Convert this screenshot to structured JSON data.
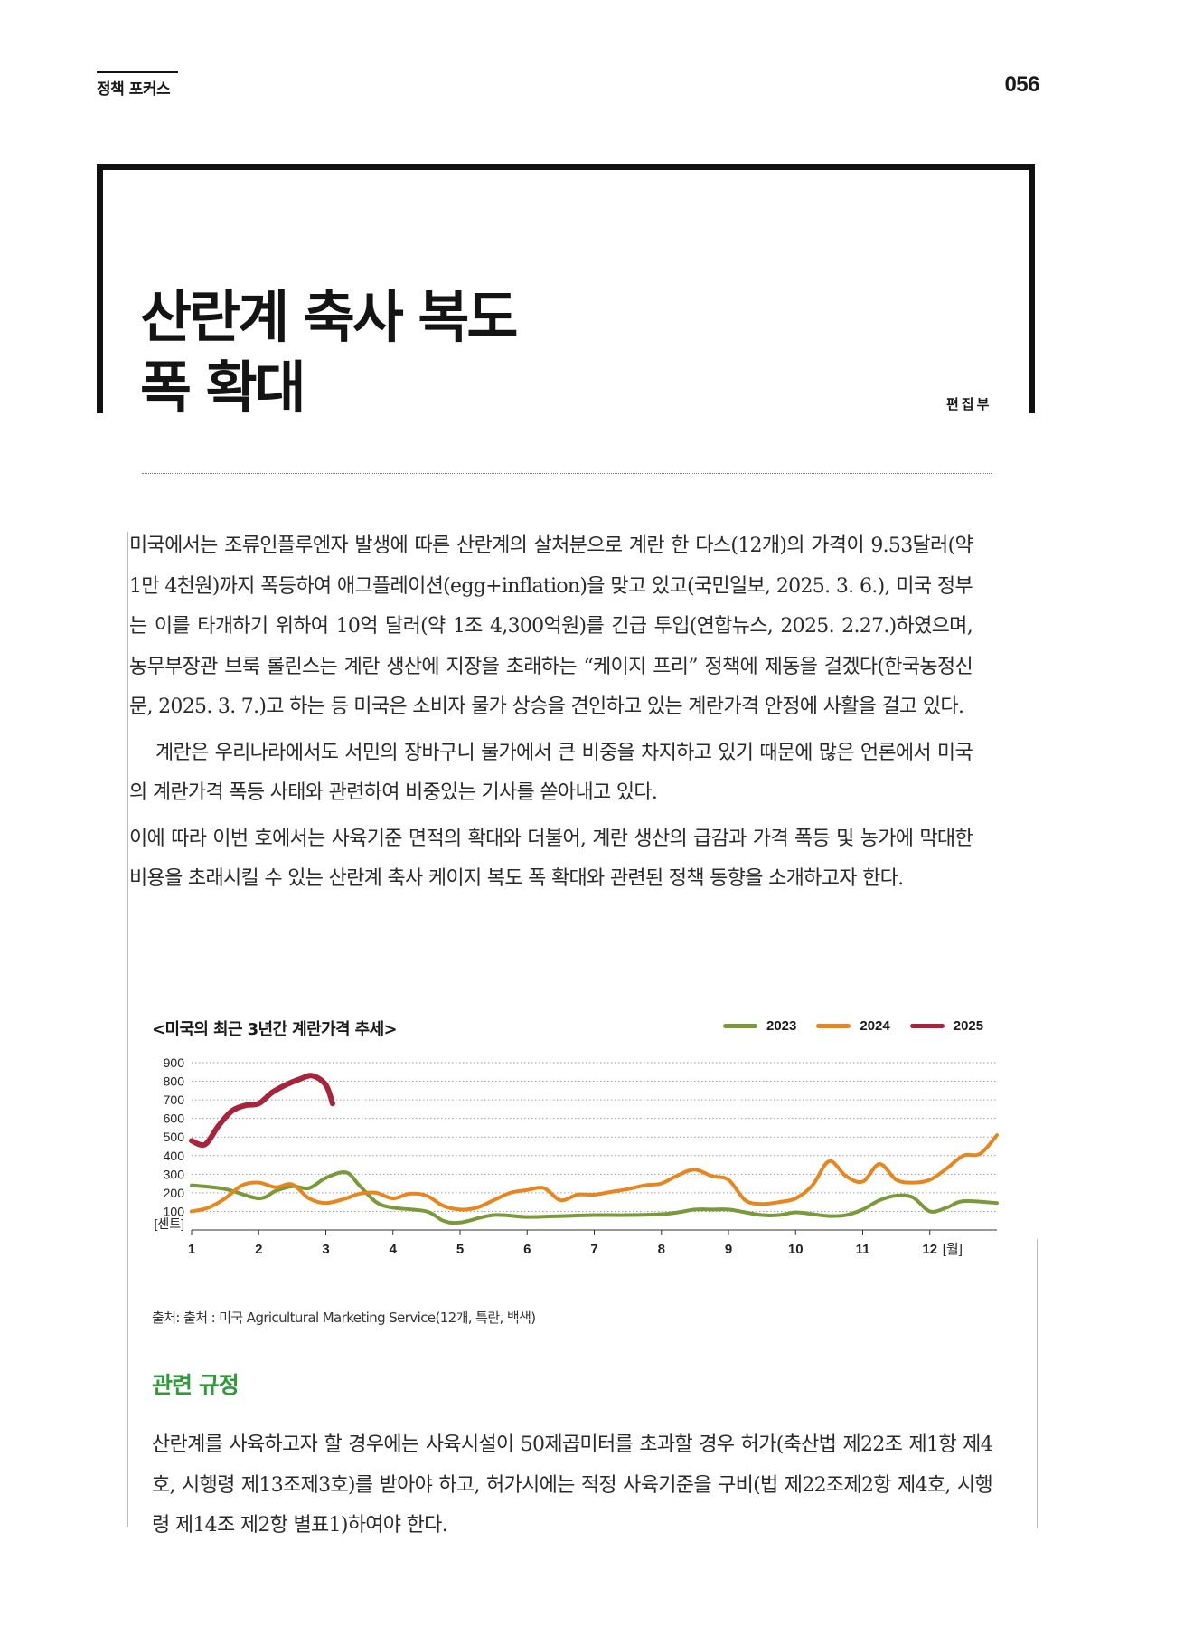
{
  "header": {
    "section": "정책 포커스",
    "page_number": "056"
  },
  "article": {
    "title_line1": "산란계 축사 복도",
    "title_line2": "폭 확대",
    "author": "편집부",
    "paragraphs": [
      "미국에서는 조류인플루엔자 발생에 따른 산란계의 살처분으로 계란 한 다스(12개)의 가격이 9.53달러(약 1만 4천원)까지 폭등하여 애그플레이션(egg+inflation)을 맞고 있고(국민일보, 2025. 3. 6.), 미국 정부는 이를 타개하기 위하여 10억 달러(약 1조 4,300억원)를 긴급 투입(연합뉴스, 2025. 2.27.)하였으며, 농무부장관 브룩 롤린스는 계란 생산에 지장을 초래하는 “케이지 프리” 정책에 제동을 걸겠다(한국농정신문, 2025. 3. 7.)고 하는 등 미국은 소비자 물가 상승을 견인하고 있는 계란가격 안정에 사활을 걸고 있다.",
      "계란은 우리나라에서도 서민의 장바구니 물가에서 큰 비중을 차지하고 있기 때문에 많은 언론에서 미국의 계란가격 폭등 사태와 관련하여 비중있는 기사를 쏟아내고 있다.",
      "이에 따라 이번 호에서는 사육기준 면적의 확대와 더불어, 계란 생산의 급감과 가격 폭등 및 농가에 막대한 비용을 초래시킬 수 있는 산란계 축사 케이지 복도 폭 확대와 관련된 정책 동향을 소개하고자 한다."
    ],
    "chart_source": "출처: 출처 : 미국 Agricultural Marketing Service(12개, 특란, 백색)",
    "subheading": "관련 규정",
    "regulation_text": "산란계를 사육하고자 할 경우에는 사육시설이 50제곱미터를 초과할 경우 허가(축산법 제22조 제1항 제4호, 시행령 제13조제3호)를 받아야 하고, 허가시에는 적정 사육기준을 구비(법 제22조제2항 제4호, 시행령 제14조 제2항 별표1)하여야 한다."
  },
  "chart_data": {
    "type": "line",
    "title": "<미국의 최근 3년간 계란가격 추세>",
    "ylabel": "[센트]",
    "xlabel": "[월]",
    "ylim": [
      0,
      900
    ],
    "xlim": [
      1,
      13
    ],
    "y_ticks": [
      "900",
      "800",
      "700",
      "600",
      "500",
      "400",
      "300",
      "200",
      "100"
    ],
    "x_ticks": [
      "1",
      "2",
      "3",
      "4",
      "5",
      "6",
      "7",
      "8",
      "9",
      "10",
      "11",
      "12"
    ],
    "grid": "horizontal-dotted",
    "legend_position": "top-right",
    "series": [
      {
        "name": "2023",
        "color": "#7a9a3a",
        "x": [
          1,
          1.5,
          2,
          2.25,
          2.5,
          2.75,
          3,
          3.3,
          3.5,
          3.75,
          4,
          4.5,
          4.75,
          5,
          5.5,
          6,
          6.5,
          7,
          7.5,
          8,
          8.25,
          8.5,
          8.75,
          9,
          9.25,
          9.5,
          9.75,
          10,
          10.25,
          10.5,
          10.75,
          11,
          11.25,
          11.5,
          11.75,
          12,
          12.25,
          12.5,
          13
        ],
        "values": [
          240,
          220,
          170,
          210,
          235,
          225,
          280,
          310,
          240,
          150,
          120,
          100,
          50,
          40,
          80,
          70,
          75,
          80,
          80,
          85,
          95,
          110,
          110,
          110,
          95,
          80,
          80,
          95,
          85,
          75,
          80,
          110,
          160,
          185,
          175,
          100,
          120,
          155,
          145
        ]
      },
      {
        "name": "2024",
        "color": "#e8851c",
        "x": [
          1,
          1.25,
          1.5,
          1.75,
          2,
          2.25,
          2.5,
          2.75,
          3,
          3.3,
          3.5,
          3.75,
          4,
          4.25,
          4.5,
          4.75,
          5,
          5.25,
          5.5,
          5.75,
          6,
          6.25,
          6.5,
          6.75,
          7,
          7.25,
          7.5,
          7.75,
          8,
          8.25,
          8.5,
          8.75,
          9,
          9.25,
          9.5,
          9.75,
          10,
          10.25,
          10.5,
          10.75,
          11,
          11.25,
          11.5,
          11.75,
          12,
          12.25,
          12.5,
          12.75,
          13
        ],
        "values": [
          100,
          120,
          170,
          240,
          255,
          230,
          245,
          170,
          145,
          170,
          195,
          200,
          170,
          195,
          185,
          130,
          110,
          120,
          160,
          200,
          215,
          225,
          160,
          190,
          190,
          205,
          220,
          240,
          250,
          295,
          325,
          290,
          270,
          160,
          140,
          150,
          170,
          240,
          370,
          290,
          260,
          355,
          270,
          255,
          270,
          330,
          400,
          410,
          510
        ]
      },
      {
        "name": "2025",
        "color": "#a8243c",
        "x": [
          1,
          1.2,
          1.4,
          1.6,
          1.8,
          2,
          2.2,
          2.4,
          2.6,
          2.8,
          3,
          3.1
        ],
        "values": [
          480,
          460,
          560,
          640,
          670,
          680,
          740,
          780,
          810,
          830,
          780,
          680
        ]
      }
    ]
  }
}
